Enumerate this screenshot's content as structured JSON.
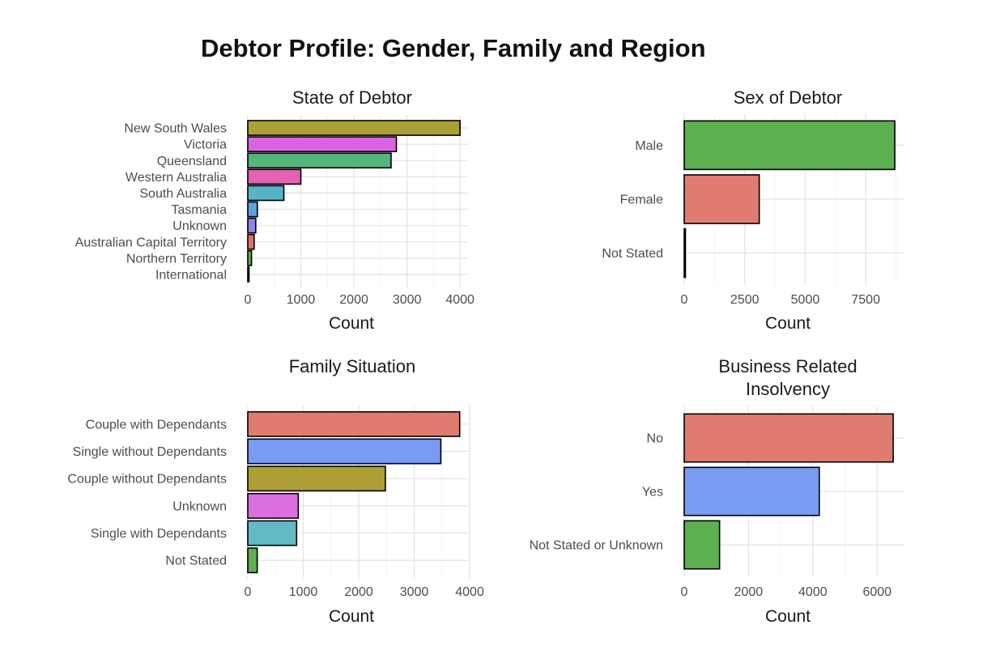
{
  "title": "Debtor Profile: Gender, Family and Region",
  "chart_data": [
    {
      "type": "bar",
      "orientation": "horizontal",
      "title": "State of Debtor",
      "xlabel": "Count",
      "ylabel": "",
      "categories": [
        "New South Wales",
        "Victoria",
        "Queensland",
        "Western Australia",
        "South Australia",
        "Tasmania",
        "Unknown",
        "Australian Capital Territory",
        "Northern Territory",
        "International"
      ],
      "values": [
        4000,
        2800,
        2700,
        1000,
        680,
        180,
        150,
        120,
        70,
        10
      ],
      "colors": [
        "#a9a135",
        "#d965e2",
        "#56b47b",
        "#e462b2",
        "#57b3c6",
        "#5aa3e0",
        "#8d86ea",
        "#e26f6d",
        "#5db04f",
        "#c9a13a"
      ],
      "xlim": [
        0,
        4150
      ],
      "xticks": [
        0,
        1000,
        2000,
        3000,
        4000
      ],
      "grid": true,
      "legend": "none"
    },
    {
      "type": "bar",
      "orientation": "horizontal",
      "title": "Sex of Debtor",
      "xlabel": "Count",
      "ylabel": "",
      "categories": [
        "Male",
        "Female",
        "Not Stated"
      ],
      "values": [
        8700,
        3100,
        15
      ],
      "colors": [
        "#5db04f",
        "#e07b70",
        "#7a9bf2"
      ],
      "xlim": [
        0,
        9100
      ],
      "xticks": [
        0,
        2500,
        5000,
        7500
      ],
      "grid": true,
      "legend": "none"
    },
    {
      "type": "bar",
      "orientation": "horizontal",
      "title": "Family Situation",
      "xlabel": "Count",
      "ylabel": "",
      "categories": [
        "Couple with Dependants",
        "Single without Dependants",
        "Couple without Dependants",
        "Unknown",
        "Single with Dependants",
        "Not Stated"
      ],
      "values": [
        3820,
        3480,
        2480,
        910,
        880,
        170
      ],
      "colors": [
        "#e07b70",
        "#7a9bf2",
        "#ad9e35",
        "#dd6ee0",
        "#63b9c4",
        "#5db04f"
      ],
      "xlim": [
        0,
        3970
      ],
      "xticks": [
        0,
        1000,
        2000,
        3000,
        4000
      ],
      "grid": true,
      "legend": "none"
    },
    {
      "type": "bar",
      "orientation": "horizontal",
      "title": "Business Related\nInsolvency",
      "xlabel": "Count",
      "ylabel": "",
      "categories": [
        "No",
        "Yes",
        "Not Stated or Unknown"
      ],
      "values": [
        6500,
        4200,
        1100
      ],
      "colors": [
        "#e07b70",
        "#7a9bf2",
        "#5db04f"
      ],
      "xlim": [
        0,
        6850
      ],
      "xticks": [
        0,
        2000,
        4000,
        6000
      ],
      "grid": true,
      "legend": "none"
    }
  ]
}
